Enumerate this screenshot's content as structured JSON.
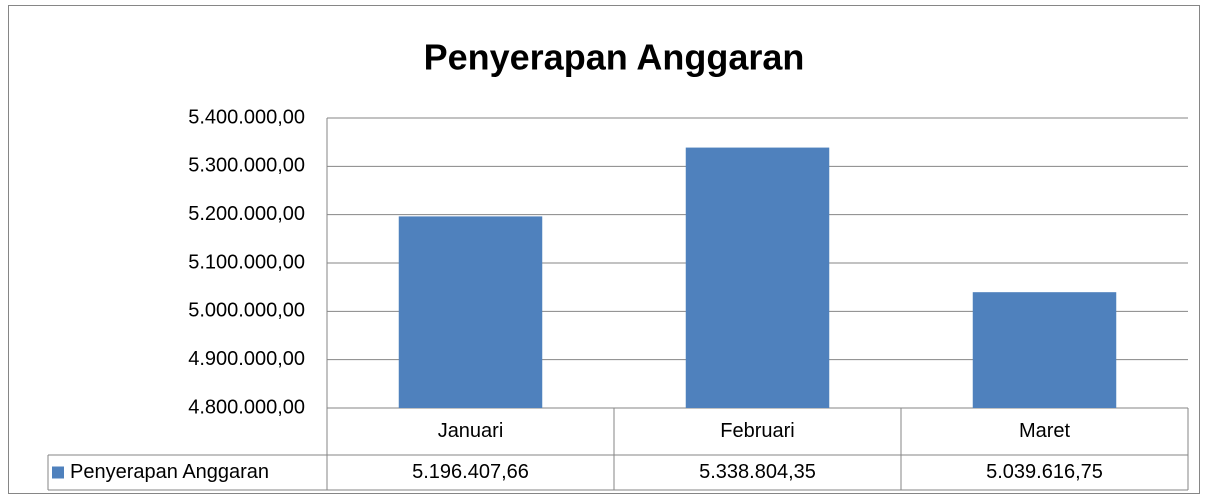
{
  "chart_data": {
    "type": "bar",
    "title": "Penyerapan Anggaran",
    "categories": [
      "Januari",
      "Februari",
      "Maret"
    ],
    "series": [
      {
        "name": "Penyerapan Anggaran",
        "color": "#4f81bd",
        "values": [
          5196407.66,
          5338804.35,
          5039616.75
        ],
        "value_labels": [
          "5.196.407,66",
          "5.338.804,35",
          "5.039.616,75"
        ]
      }
    ],
    "ylim": [
      4800000,
      5400000
    ],
    "yticks": [
      {
        "value": 4800000,
        "label": "4.800.000,00"
      },
      {
        "value": 4900000,
        "label": "4.900.000,00"
      },
      {
        "value": 5000000,
        "label": "5.000.000,00"
      },
      {
        "value": 5100000,
        "label": "5.100.000,00"
      },
      {
        "value": 5200000,
        "label": "5.200.000,00"
      },
      {
        "value": 5300000,
        "label": "5.300.000,00"
      },
      {
        "value": 5400000,
        "label": "5.400.000,00"
      }
    ],
    "grid": true
  }
}
